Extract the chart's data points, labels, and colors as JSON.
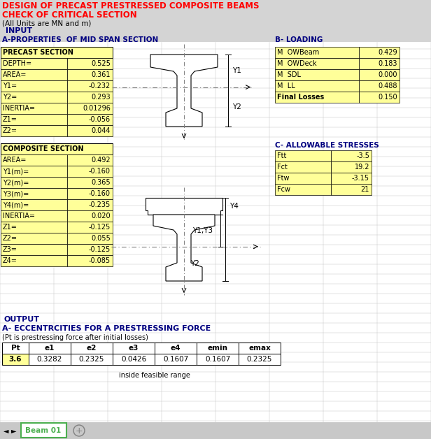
{
  "title1": "DESIGN OF PRECAST PRESTRESSED COMPOSITE BEAMS",
  "title2": "CHECK OF CRITICAL SECTION",
  "units_text": "(All Units are MN and m)",
  "input_label": "INPUT",
  "section_a_label": "A-PROPERTIES  OF MID SPAN SECTION",
  "section_b_label": "B- LOADING",
  "precast_label": "PRECAST SECTION",
  "precast_data": [
    [
      "DEPTH=",
      "0.525"
    ],
    [
      "AREA=",
      "0.361"
    ],
    [
      "Y1=",
      "-0.232"
    ],
    [
      "Y2=",
      "0.293"
    ],
    [
      "INERTIA=",
      "0.01296"
    ],
    [
      "Z1=",
      "-0.056"
    ],
    [
      "Z2=",
      "0.044"
    ]
  ],
  "loading_data": [
    [
      "M  OWBeam",
      "0.429"
    ],
    [
      "M  OWDeck",
      "0.183"
    ],
    [
      "M  SDL",
      "0.000"
    ],
    [
      "M  LL",
      "0.488"
    ],
    [
      "Final Losses",
      "0.150"
    ]
  ],
  "composite_label": "COMPOSITE SECTION",
  "composite_data": [
    [
      "AREA=",
      "0.492"
    ],
    [
      "Y1(m)=",
      "-0.160"
    ],
    [
      "Y2(m)=",
      "0.365"
    ],
    [
      "Y3(m)=",
      "-0.160"
    ],
    [
      "Y4(m)=",
      "-0.235"
    ],
    [
      "INERTIA=",
      "0.020"
    ],
    [
      "Z1=",
      "-0.125"
    ],
    [
      "Z2=",
      "0.055"
    ],
    [
      "Z3=",
      "-0.125"
    ],
    [
      "Z4=",
      "-0.085"
    ]
  ],
  "section_c_label": "C- ALLOWABLE STRESSES",
  "stress_data": [
    [
      "Ftt",
      "-3.5"
    ],
    [
      "Fct",
      "19.2"
    ],
    [
      "Ftw",
      "-3.15"
    ],
    [
      "Fcw",
      "21"
    ]
  ],
  "output_label": "OUTPUT",
  "output_a_label": "A- ECCENTRCITIES FOR A PRESTRESSING FORCE",
  "output_note": "(Pt is prestressing force after initial losses)",
  "table_headers": [
    "Pt",
    "e1",
    "e2",
    "e3",
    "e4",
    "emin",
    "emax"
  ],
  "table_row": [
    "3.6",
    "0.3282",
    "0.2325",
    "0.0426",
    "0.1607",
    "0.1607",
    "0.2325"
  ],
  "feasible_text": "inside feasible range",
  "tab_label": "Beam 01",
  "bg_color": "#FFFFFF",
  "yellow_bg": "#FFFF99",
  "red_color": "#FF0000",
  "dark_blue": "#000080",
  "black": "#000000",
  "tab_green": "#4CAF50",
  "gray_bg": "#D4D4D4",
  "grid_color": "#C0C0C0"
}
